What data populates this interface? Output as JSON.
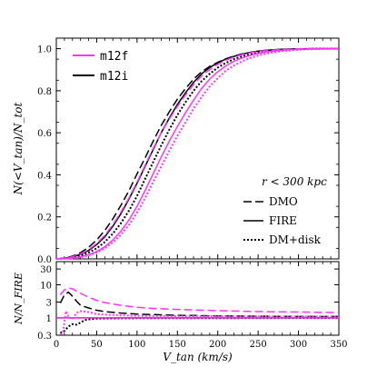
{
  "chart_data": [
    {
      "type": "line",
      "panel": "top",
      "ylabel": "N(<V_tan)/N_tot",
      "ylim": [
        0.0,
        1.05
      ],
      "yticks": [
        "0.0",
        "0.2",
        "0.4",
        "0.6",
        "0.8",
        "1.0"
      ],
      "ytick_values": [
        0.0,
        0.2,
        0.4,
        0.6,
        0.8,
        1.0
      ],
      "xlim": [
        0,
        350
      ],
      "grid": false,
      "legend_simulation": {
        "placement": "top-left",
        "entries": [
          {
            "label": "m12f",
            "color": "#ff33ff"
          },
          {
            "label": "m12i",
            "color": "#000000"
          }
        ]
      },
      "legend_model": {
        "placement": "bottom-right",
        "title": "r < 300 kpc",
        "entries": [
          {
            "label": "DMO",
            "style": "dashed"
          },
          {
            "label": "FIRE",
            "style": "solid"
          },
          {
            "label": "DM+disk",
            "style": "dotted"
          }
        ]
      },
      "series": [
        {
          "sim": "m12i",
          "model": "DMO",
          "color": "#000000",
          "style": "dashed",
          "x": [
            0,
            10,
            20,
            30,
            40,
            50,
            60,
            70,
            80,
            90,
            100,
            110,
            120,
            130,
            140,
            150,
            160,
            170,
            180,
            190,
            200,
            210,
            220,
            230,
            240,
            250,
            260,
            270,
            280,
            290,
            300,
            320,
            350
          ],
          "y": [
            0.0,
            0.003,
            0.013,
            0.03,
            0.055,
            0.09,
            0.135,
            0.19,
            0.255,
            0.325,
            0.405,
            0.48,
            0.56,
            0.635,
            0.7,
            0.76,
            0.81,
            0.855,
            0.89,
            0.915,
            0.935,
            0.952,
            0.965,
            0.975,
            0.982,
            0.988,
            0.992,
            0.995,
            0.997,
            0.998,
            0.999,
            1.0,
            1.0
          ]
        },
        {
          "sim": "m12i",
          "model": "FIRE",
          "color": "#000000",
          "style": "solid",
          "x": [
            0,
            10,
            20,
            30,
            40,
            50,
            60,
            70,
            80,
            90,
            100,
            110,
            120,
            130,
            140,
            150,
            160,
            170,
            180,
            190,
            200,
            210,
            220,
            230,
            240,
            250,
            260,
            270,
            280,
            290,
            300,
            320,
            350
          ],
          "y": [
            0.0,
            0.002,
            0.01,
            0.022,
            0.04,
            0.068,
            0.105,
            0.155,
            0.215,
            0.285,
            0.36,
            0.44,
            0.52,
            0.6,
            0.67,
            0.735,
            0.79,
            0.84,
            0.88,
            0.91,
            0.933,
            0.95,
            0.963,
            0.974,
            0.982,
            0.988,
            0.992,
            0.995,
            0.997,
            0.998,
            0.999,
            1.0,
            1.0
          ]
        },
        {
          "sim": "m12i",
          "model": "DM+disk",
          "color": "#000000",
          "style": "dotted",
          "x": [
            0,
            10,
            20,
            30,
            40,
            50,
            60,
            70,
            80,
            90,
            100,
            110,
            120,
            130,
            140,
            150,
            160,
            170,
            180,
            190,
            200,
            210,
            220,
            230,
            240,
            250,
            260,
            270,
            280,
            290,
            300,
            320,
            350
          ],
          "y": [
            0.0,
            0.002,
            0.007,
            0.016,
            0.03,
            0.05,
            0.08,
            0.12,
            0.17,
            0.23,
            0.3,
            0.38,
            0.46,
            0.54,
            0.615,
            0.685,
            0.745,
            0.8,
            0.845,
            0.88,
            0.91,
            0.932,
            0.95,
            0.963,
            0.974,
            0.982,
            0.988,
            0.992,
            0.995,
            0.997,
            0.998,
            1.0,
            1.0
          ]
        },
        {
          "sim": "m12f",
          "model": "DMO",
          "color": "#ff33ff",
          "style": "dashed",
          "x": [
            0,
            10,
            20,
            30,
            40,
            50,
            60,
            70,
            80,
            90,
            100,
            110,
            120,
            130,
            140,
            150,
            160,
            170,
            180,
            190,
            200,
            210,
            220,
            230,
            240,
            250,
            260,
            270,
            280,
            290,
            300,
            320,
            350
          ],
          "y": [
            0.0,
            0.002,
            0.01,
            0.024,
            0.044,
            0.073,
            0.112,
            0.162,
            0.222,
            0.29,
            0.365,
            0.445,
            0.525,
            0.6,
            0.665,
            0.725,
            0.78,
            0.83,
            0.87,
            0.9,
            0.925,
            0.945,
            0.96,
            0.972,
            0.98,
            0.987,
            0.991,
            0.994,
            0.996,
            0.998,
            0.999,
            1.0,
            1.0
          ]
        },
        {
          "sim": "m12f",
          "model": "FIRE",
          "color": "#ff33ff",
          "style": "solid",
          "x": [
            0,
            10,
            20,
            30,
            40,
            50,
            60,
            70,
            80,
            90,
            100,
            110,
            120,
            130,
            140,
            150,
            160,
            170,
            180,
            190,
            200,
            210,
            220,
            230,
            240,
            250,
            260,
            270,
            280,
            290,
            300,
            320,
            350
          ],
          "y": [
            0.0,
            0.001,
            0.004,
            0.01,
            0.02,
            0.035,
            0.058,
            0.09,
            0.132,
            0.185,
            0.25,
            0.325,
            0.405,
            0.485,
            0.56,
            0.63,
            0.695,
            0.755,
            0.81,
            0.855,
            0.89,
            0.918,
            0.94,
            0.956,
            0.968,
            0.977,
            0.984,
            0.989,
            0.993,
            0.995,
            0.997,
            0.999,
            1.0
          ]
        },
        {
          "sim": "m12f",
          "model": "DM+disk",
          "color": "#ff33ff",
          "style": "dotted",
          "x": [
            0,
            10,
            20,
            30,
            40,
            50,
            60,
            70,
            80,
            90,
            100,
            110,
            120,
            130,
            140,
            150,
            160,
            170,
            180,
            190,
            200,
            210,
            220,
            230,
            240,
            250,
            260,
            270,
            280,
            290,
            300,
            320,
            350
          ],
          "y": [
            0.0,
            0.001,
            0.003,
            0.008,
            0.016,
            0.03,
            0.05,
            0.078,
            0.115,
            0.162,
            0.22,
            0.29,
            0.365,
            0.44,
            0.515,
            0.585,
            0.65,
            0.715,
            0.77,
            0.82,
            0.86,
            0.895,
            0.92,
            0.94,
            0.955,
            0.967,
            0.976,
            0.983,
            0.988,
            0.992,
            0.995,
            0.998,
            1.0
          ]
        }
      ]
    },
    {
      "type": "line",
      "panel": "bottom",
      "ylabel": "N/N_FIRE",
      "xlabel": "V_tan (km/s)",
      "yscale": "log",
      "ylim": [
        0.3,
        50
      ],
      "yticks": [
        "0.3",
        "1",
        "3",
        "10",
        "30"
      ],
      "ytick_values": [
        0.3,
        1,
        3,
        10,
        30
      ],
      "xlim": [
        0,
        350
      ],
      "xticks": [
        "0",
        "50",
        "100",
        "150",
        "200",
        "250",
        "300",
        "350"
      ],
      "xtick_values": [
        0,
        50,
        100,
        150,
        200,
        250,
        300,
        350
      ],
      "series": [
        {
          "sim": "m12i",
          "model": "DMO",
          "color": "#000000",
          "style": "dashed",
          "x": [
            5,
            10,
            15,
            20,
            25,
            30,
            40,
            50,
            60,
            80,
            100,
            125,
            150,
            200,
            250,
            300,
            350
          ],
          "y": [
            2.8,
            5.0,
            6.0,
            4.5,
            3.2,
            2.4,
            2.0,
            1.7,
            1.55,
            1.4,
            1.3,
            1.25,
            1.2,
            1.15,
            1.12,
            1.1,
            1.1
          ]
        },
        {
          "sim": "m12i",
          "model": "FIRE",
          "color": "#000000",
          "style": "solid",
          "x": [
            0,
            350
          ],
          "y": [
            1.0,
            1.0
          ]
        },
        {
          "sim": "m12i",
          "model": "DM+disk",
          "color": "#000000",
          "style": "dotted",
          "x": [
            5,
            10,
            15,
            20,
            25,
            30,
            35,
            40,
            50,
            60,
            80,
            100,
            150,
            200,
            250,
            300,
            350
          ],
          "y": [
            0.35,
            0.4,
            0.55,
            0.65,
            0.62,
            0.72,
            0.85,
            0.9,
            0.95,
            0.96,
            0.97,
            0.98,
            0.98,
            0.98,
            0.99,
            0.99,
            0.99
          ]
        },
        {
          "sim": "m12f",
          "model": "DMO",
          "color": "#ff33ff",
          "style": "dashed",
          "x": [
            5,
            10,
            15,
            20,
            25,
            30,
            40,
            50,
            60,
            80,
            100,
            125,
            150,
            200,
            250,
            300,
            350
          ],
          "y": [
            5.0,
            7.0,
            8.0,
            7.5,
            6.5,
            5.5,
            4.2,
            3.4,
            2.9,
            2.4,
            2.1,
            1.9,
            1.8,
            1.65,
            1.55,
            1.5,
            1.45
          ]
        },
        {
          "sim": "m12f",
          "model": "FIRE",
          "color": "#ff33ff",
          "style": "solid",
          "x": [
            0,
            350
          ],
          "y": [
            1.0,
            1.0
          ]
        },
        {
          "sim": "m12f",
          "model": "DM+disk",
          "color": "#ff33ff",
          "style": "dotted",
          "x": [
            5,
            8,
            12,
            15,
            20,
            25,
            30,
            40,
            50,
            60,
            80,
            100,
            150,
            200,
            250,
            300,
            350
          ],
          "y": [
            0.32,
            0.35,
            1.6,
            1.1,
            0.9,
            1.4,
            1.6,
            1.5,
            1.3,
            1.25,
            1.2,
            1.15,
            1.13,
            1.12,
            1.11,
            1.1,
            1.1
          ]
        }
      ]
    }
  ]
}
